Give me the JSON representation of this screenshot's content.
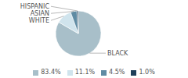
{
  "chart_data": {
    "type": "pie",
    "categories": [
      "BLACK",
      "WHITE",
      "ASIAN",
      "HISPANIC"
    ],
    "values": [
      83.4,
      11.1,
      4.5,
      1.0
    ],
    "colors": [
      "#a8bfc9",
      "#d0e4ed",
      "#5f8ba3",
      "#1e3f5a"
    ],
    "value_labels": [
      "83.4%",
      "11.1%",
      "4.5%",
      "1.0%"
    ],
    "legend": "bottom"
  }
}
